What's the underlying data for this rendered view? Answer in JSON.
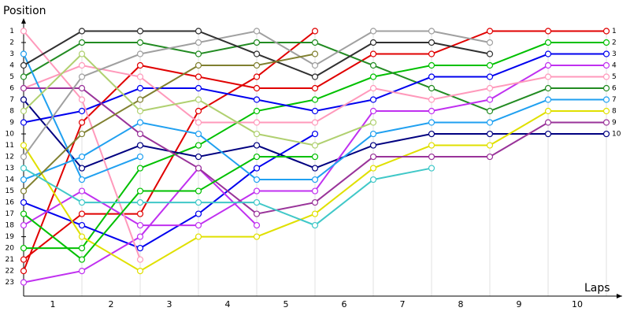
{
  "chart_data": {
    "type": "line",
    "ylabel": "Position",
    "xlabel": "Laps",
    "x": [
      0,
      1,
      2,
      3,
      4,
      5,
      6,
      7,
      8,
      9,
      10
    ],
    "xlim": [
      0,
      10.27
    ],
    "xticks": [
      {
        "value": 0.5,
        "label": "1"
      },
      {
        "value": 1.5,
        "label": "2"
      },
      {
        "value": 2.5,
        "label": "3"
      },
      {
        "value": 3.5,
        "label": "4"
      },
      {
        "value": 4.5,
        "label": "5"
      },
      {
        "value": 5.5,
        "label": "6"
      },
      {
        "value": 6.5,
        "label": "7"
      },
      {
        "value": 7.5,
        "label": "8"
      },
      {
        "value": 8.5,
        "label": "9"
      },
      {
        "value": 9.5,
        "label": "10"
      }
    ],
    "ylim": [
      24.2,
      0
    ],
    "yticks": [
      1,
      2,
      3,
      4,
      5,
      6,
      7,
      8,
      9,
      10,
      11,
      12,
      13,
      14,
      15,
      16,
      17,
      18,
      19,
      20,
      21,
      22,
      23
    ],
    "y2lim": [
      24.2,
      0
    ],
    "y2ticks": [
      1,
      2,
      3,
      4,
      5,
      6,
      7,
      8,
      9,
      10
    ],
    "grid": true,
    "series": [
      {
        "color": "#e00000",
        "values": [
          22,
          9,
          4,
          5,
          6,
          6,
          3,
          3,
          1,
          1,
          1
        ]
      },
      {
        "color": "#e00000",
        "values": [
          21,
          17,
          17,
          8,
          5,
          1,
          null,
          null,
          null,
          null,
          null
        ]
      },
      {
        "color": "#00c000",
        "values": [
          20,
          20,
          13,
          11,
          8,
          7,
          5,
          4,
          4,
          2,
          2
        ]
      },
      {
        "color": "#228b22",
        "values": [
          5,
          2,
          2,
          3,
          2,
          2,
          4,
          6,
          8,
          6,
          6
        ]
      },
      {
        "color": "#0000ee",
        "values": [
          9,
          8,
          6,
          6,
          7,
          8,
          7,
          5,
          5,
          3,
          3
        ]
      },
      {
        "color": "#0000ee",
        "values": [
          16,
          18,
          20,
          17,
          13,
          10,
          null,
          null,
          null,
          null,
          null
        ]
      },
      {
        "color": "#000080",
        "values": [
          7,
          13,
          11,
          12,
          11,
          13,
          11,
          10,
          10,
          10,
          10
        ]
      },
      {
        "color": "#c030f0",
        "values": [
          23,
          22,
          19,
          13,
          18,
          null,
          null,
          null,
          null,
          null,
          null
        ]
      },
      {
        "color": "#c030f0",
        "values": [
          18,
          15,
          18,
          18,
          15,
          15,
          8,
          8,
          7,
          4,
          4
        ]
      },
      {
        "color": "#ff99bb",
        "values": [
          6,
          4,
          5,
          9,
          9,
          9,
          6,
          7,
          6,
          5,
          5
        ]
      },
      {
        "color": "#ff99bb",
        "values": [
          1,
          7,
          21,
          null,
          null,
          null,
          null,
          null,
          null,
          null,
          null
        ]
      },
      {
        "color": "#20a0f0",
        "values": [
          14,
          12,
          9,
          10,
          14,
          14,
          10,
          9,
          9,
          7,
          7
        ]
      },
      {
        "color": "#20a0f0",
        "values": [
          3,
          14,
          12,
          null,
          null,
          null,
          null,
          null,
          null,
          null,
          null
        ]
      },
      {
        "color": "#e0e000",
        "values": [
          11,
          19,
          22,
          19,
          19,
          17,
          13,
          11,
          11,
          8,
          8
        ]
      },
      {
        "color": "#993399",
        "values": [
          6,
          6,
          10,
          13,
          17,
          16,
          12,
          12,
          12,
          9,
          9
        ]
      },
      {
        "color": "#a0a0a0",
        "values": [
          12,
          5,
          3,
          2,
          1,
          4,
          1,
          1,
          2,
          null,
          null
        ]
      },
      {
        "color": "#303030",
        "values": [
          4,
          1,
          1,
          1,
          3,
          5,
          2,
          2,
          3,
          null,
          null
        ]
      },
      {
        "color": "#808030",
        "values": [
          15,
          10,
          7,
          4,
          4,
          3,
          null,
          null,
          null,
          null,
          null
        ]
      },
      {
        "color": "#b0d070",
        "values": [
          8,
          3,
          8,
          7,
          10,
          11,
          9,
          null,
          null,
          null,
          null
        ]
      },
      {
        "color": "#40c8c8",
        "values": [
          13,
          16,
          16,
          16,
          16,
          18,
          14,
          13,
          null,
          null,
          null
        ]
      },
      {
        "color": "#00c000",
        "values": [
          17,
          21,
          15,
          15,
          12,
          12,
          null,
          null,
          null,
          null,
          null
        ]
      }
    ]
  }
}
